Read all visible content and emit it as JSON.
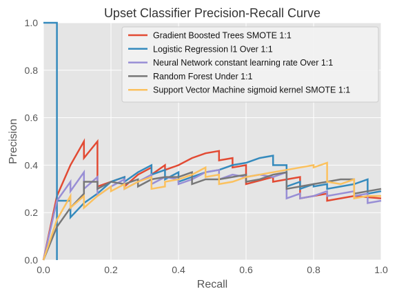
{
  "chart_data": {
    "type": "line",
    "title": "Upset Classifier Precision-Recall Curve",
    "xlabel": "Recall",
    "ylabel": "Precision",
    "xlim": [
      0,
      1
    ],
    "ylim": [
      0,
      1
    ],
    "grid": true,
    "legend_position": "top-right",
    "x_ticks": [
      0.0,
      0.2,
      0.4,
      0.6,
      0.8,
      1.0
    ],
    "x_tick_labels": [
      "0.0",
      "0.2",
      "0.4",
      "0.6",
      "0.8",
      "1.0"
    ],
    "y_ticks": [
      0.0,
      0.2,
      0.4,
      0.6,
      0.8,
      1.0
    ],
    "y_tick_labels": [
      "0.0",
      "0.2",
      "0.4",
      "0.6",
      "0.8",
      "1.0"
    ],
    "series": [
      {
        "name": "Gradient Boosted Trees SMOTE 1:1",
        "color": "#E24A33",
        "points": [
          [
            0,
            0
          ],
          [
            0.04,
            0.27
          ],
          [
            0.08,
            0.4
          ],
          [
            0.12,
            0.5
          ],
          [
            0.12,
            0.43
          ],
          [
            0.16,
            0.5
          ],
          [
            0.16,
            0.31
          ],
          [
            0.2,
            0.33
          ],
          [
            0.24,
            0.35
          ],
          [
            0.24,
            0.31
          ],
          [
            0.28,
            0.36
          ],
          [
            0.32,
            0.39
          ],
          [
            0.32,
            0.36
          ],
          [
            0.36,
            0.4
          ],
          [
            0.36,
            0.38
          ],
          [
            0.4,
            0.4
          ],
          [
            0.44,
            0.43
          ],
          [
            0.48,
            0.45
          ],
          [
            0.52,
            0.46
          ],
          [
            0.52,
            0.42
          ],
          [
            0.56,
            0.43
          ],
          [
            0.56,
            0.39
          ],
          [
            0.6,
            0.4
          ],
          [
            0.6,
            0.32
          ],
          [
            0.68,
            0.35
          ],
          [
            0.68,
            0.33
          ],
          [
            0.76,
            0.35
          ],
          [
            0.76,
            0.26
          ],
          [
            0.8,
            0.27
          ],
          [
            0.84,
            0.28
          ],
          [
            0.84,
            0.25
          ],
          [
            0.92,
            0.27
          ],
          [
            1.0,
            0.26
          ]
        ]
      },
      {
        "name": "Logistic Regression l1 Over 1:1",
        "color": "#348ABD",
        "points": [
          [
            0,
            1.0
          ],
          [
            0.04,
            1.0
          ],
          [
            0.04,
            0.0
          ],
          [
            0.04,
            0.25
          ],
          [
            0.08,
            0.25
          ],
          [
            0.08,
            0.18
          ],
          [
            0.12,
            0.24
          ],
          [
            0.16,
            0.28
          ],
          [
            0.2,
            0.33
          ],
          [
            0.24,
            0.35
          ],
          [
            0.24,
            0.33
          ],
          [
            0.28,
            0.37
          ],
          [
            0.32,
            0.4
          ],
          [
            0.32,
            0.36
          ],
          [
            0.36,
            0.38
          ],
          [
            0.36,
            0.34
          ],
          [
            0.4,
            0.37
          ],
          [
            0.4,
            0.33
          ],
          [
            0.44,
            0.35
          ],
          [
            0.48,
            0.37
          ],
          [
            0.52,
            0.38
          ],
          [
            0.56,
            0.4
          ],
          [
            0.6,
            0.41
          ],
          [
            0.64,
            0.43
          ],
          [
            0.68,
            0.44
          ],
          [
            0.68,
            0.4
          ],
          [
            0.72,
            0.4
          ],
          [
            0.72,
            0.31
          ],
          [
            0.76,
            0.33
          ],
          [
            0.76,
            0.3
          ],
          [
            0.8,
            0.32
          ],
          [
            0.8,
            0.31
          ],
          [
            0.84,
            0.32
          ],
          [
            0.84,
            0.3
          ],
          [
            0.88,
            0.31
          ],
          [
            0.92,
            0.32
          ],
          [
            0.96,
            0.34
          ],
          [
            0.96,
            0.28
          ],
          [
            1.0,
            0.29
          ]
        ]
      },
      {
        "name": "Neural Network constant learning rate Over 1:1",
        "color": "#988ED5",
        "points": [
          [
            0,
            0
          ],
          [
            0.04,
            0.25
          ],
          [
            0.08,
            0.33
          ],
          [
            0.08,
            0.29
          ],
          [
            0.12,
            0.37
          ],
          [
            0.12,
            0.3
          ],
          [
            0.16,
            0.35
          ],
          [
            0.16,
            0.27
          ],
          [
            0.2,
            0.31
          ],
          [
            0.24,
            0.34
          ],
          [
            0.24,
            0.3
          ],
          [
            0.28,
            0.33
          ],
          [
            0.32,
            0.36
          ],
          [
            0.32,
            0.32
          ],
          [
            0.36,
            0.35
          ],
          [
            0.4,
            0.34
          ],
          [
            0.4,
            0.32
          ],
          [
            0.44,
            0.34
          ],
          [
            0.48,
            0.37
          ],
          [
            0.52,
            0.38
          ],
          [
            0.52,
            0.34
          ],
          [
            0.56,
            0.36
          ],
          [
            0.6,
            0.35
          ],
          [
            0.64,
            0.36
          ],
          [
            0.68,
            0.35
          ],
          [
            0.72,
            0.37
          ],
          [
            0.72,
            0.26
          ],
          [
            0.76,
            0.28
          ],
          [
            0.76,
            0.26
          ],
          [
            0.8,
            0.27
          ],
          [
            0.84,
            0.29
          ],
          [
            0.84,
            0.27
          ],
          [
            0.88,
            0.28
          ],
          [
            0.92,
            0.29
          ],
          [
            0.92,
            0.27
          ],
          [
            0.96,
            0.28
          ],
          [
            0.96,
            0.24
          ],
          [
            1.0,
            0.25
          ]
        ]
      },
      {
        "name": "Random Forest Under 1:1",
        "color": "#777777",
        "points": [
          [
            0,
            0
          ],
          [
            0.04,
            0.14
          ],
          [
            0.08,
            0.22
          ],
          [
            0.12,
            0.28
          ],
          [
            0.12,
            0.33
          ],
          [
            0.16,
            0.33
          ],
          [
            0.16,
            0.3
          ],
          [
            0.2,
            0.33
          ],
          [
            0.24,
            0.32
          ],
          [
            0.28,
            0.34
          ],
          [
            0.28,
            0.31
          ],
          [
            0.32,
            0.34
          ],
          [
            0.36,
            0.35
          ],
          [
            0.4,
            0.35
          ],
          [
            0.44,
            0.37
          ],
          [
            0.44,
            0.32
          ],
          [
            0.48,
            0.34
          ],
          [
            0.52,
            0.34
          ],
          [
            0.56,
            0.35
          ],
          [
            0.6,
            0.36
          ],
          [
            0.6,
            0.33
          ],
          [
            0.64,
            0.34
          ],
          [
            0.68,
            0.36
          ],
          [
            0.72,
            0.37
          ],
          [
            0.72,
            0.3
          ],
          [
            0.76,
            0.31
          ],
          [
            0.8,
            0.32
          ],
          [
            0.84,
            0.33
          ],
          [
            0.88,
            0.34
          ],
          [
            0.92,
            0.34
          ],
          [
            0.92,
            0.28
          ],
          [
            0.96,
            0.29
          ],
          [
            1.0,
            0.3
          ]
        ]
      },
      {
        "name": "Support Vector Machine sigmoid kernel SMOTE 1:1",
        "color": "#FBC15E",
        "points": [
          [
            0,
            0
          ],
          [
            0.04,
            0.17
          ],
          [
            0.08,
            0.27
          ],
          [
            0.08,
            0.22
          ],
          [
            0.12,
            0.27
          ],
          [
            0.12,
            0.22
          ],
          [
            0.16,
            0.27
          ],
          [
            0.2,
            0.31
          ],
          [
            0.2,
            0.29
          ],
          [
            0.24,
            0.32
          ],
          [
            0.24,
            0.3
          ],
          [
            0.28,
            0.33
          ],
          [
            0.32,
            0.35
          ],
          [
            0.32,
            0.3
          ],
          [
            0.36,
            0.31
          ],
          [
            0.36,
            0.33
          ],
          [
            0.4,
            0.34
          ],
          [
            0.44,
            0.36
          ],
          [
            0.48,
            0.39
          ],
          [
            0.48,
            0.35
          ],
          [
            0.52,
            0.36
          ],
          [
            0.52,
            0.32
          ],
          [
            0.56,
            0.33
          ],
          [
            0.6,
            0.35
          ],
          [
            0.64,
            0.36
          ],
          [
            0.68,
            0.37
          ],
          [
            0.72,
            0.38
          ],
          [
            0.76,
            0.39
          ],
          [
            0.8,
            0.4
          ],
          [
            0.8,
            0.39
          ],
          [
            0.84,
            0.41
          ],
          [
            0.84,
            0.33
          ],
          [
            0.88,
            0.32
          ],
          [
            0.92,
            0.34
          ],
          [
            0.92,
            0.26
          ],
          [
            0.96,
            0.27
          ],
          [
            1.0,
            0.27
          ]
        ]
      }
    ]
  }
}
